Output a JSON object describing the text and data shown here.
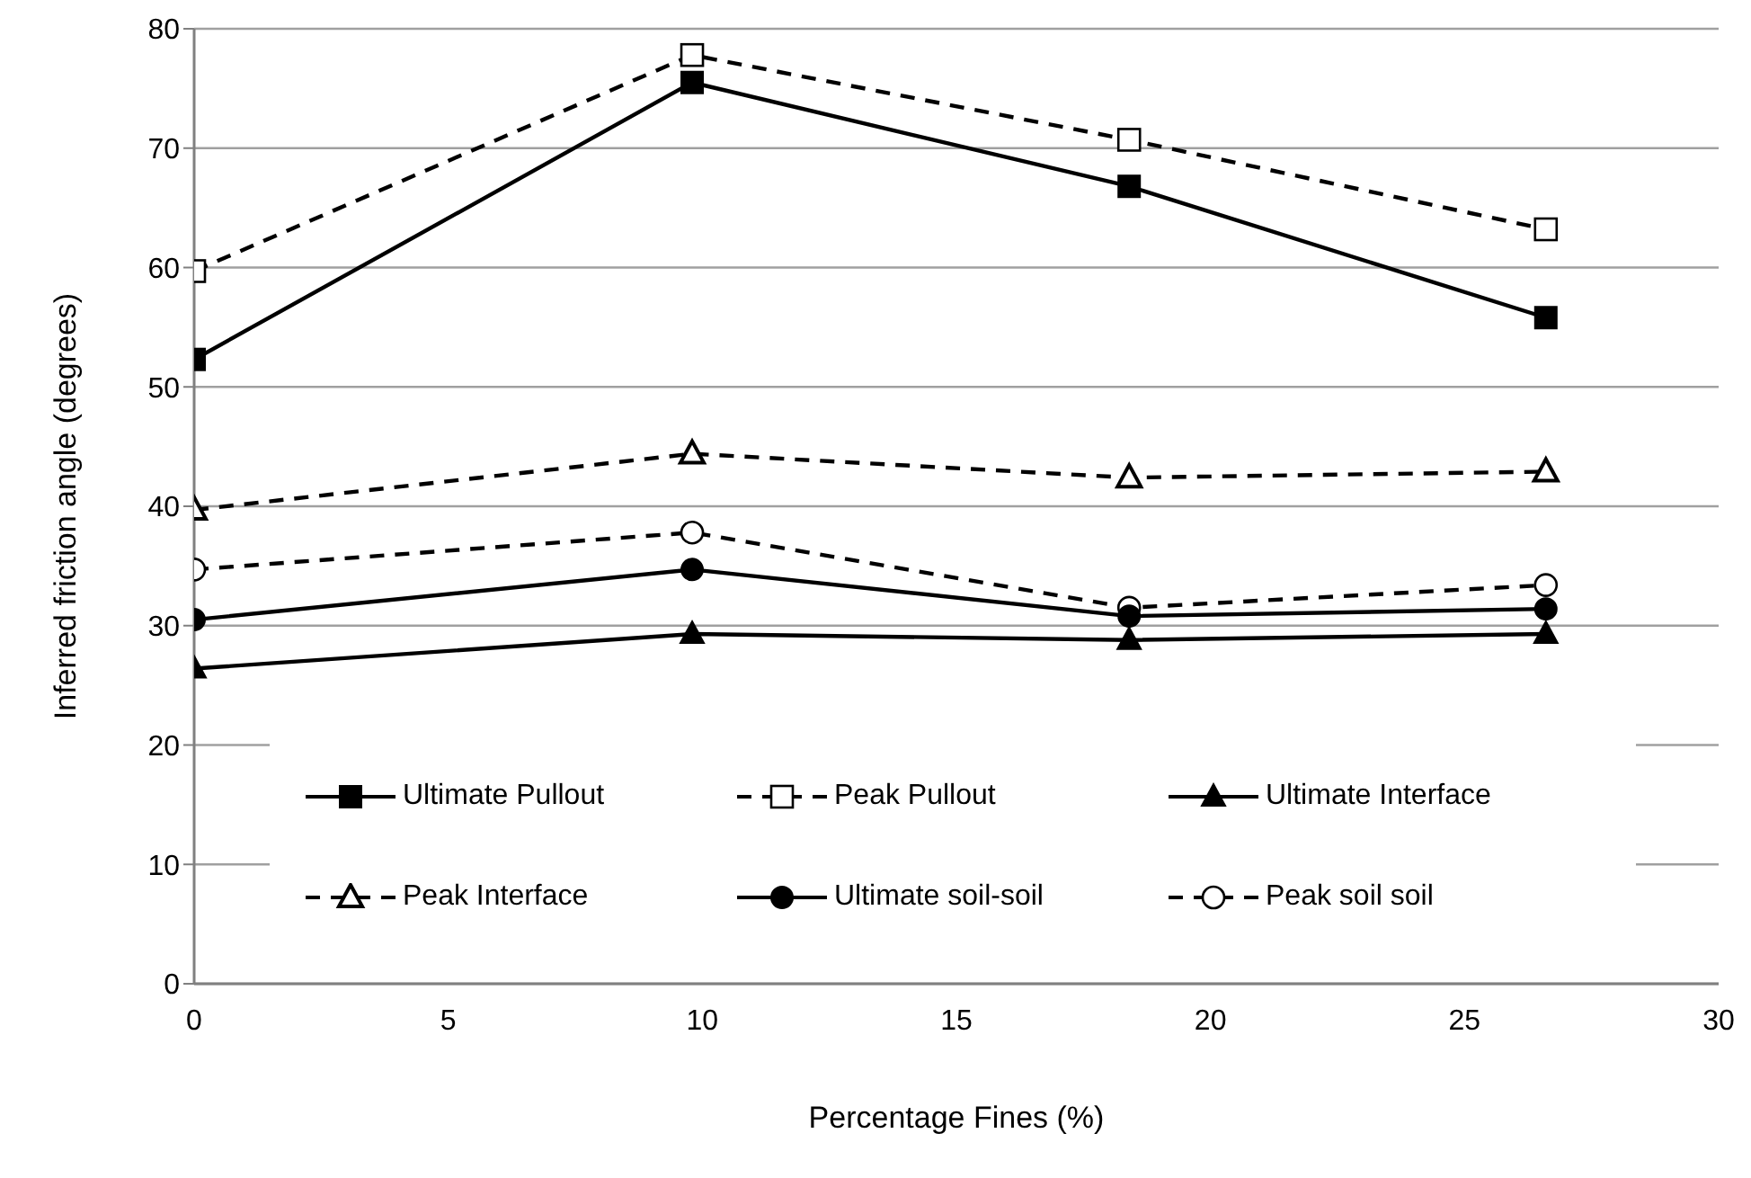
{
  "chart_data": {
    "type": "line",
    "xlabel": "Percentage Fines (%)",
    "ylabel": "Inferred friction angle (degrees)",
    "x": [
      0,
      9.8,
      18.4,
      26.6
    ],
    "xlim": [
      0,
      30
    ],
    "xticks": [
      0,
      5,
      10,
      15,
      20,
      25,
      30
    ],
    "ylim": [
      0,
      80
    ],
    "yticks": [
      0,
      10,
      20,
      30,
      40,
      50,
      60,
      70,
      80
    ],
    "grid": "y",
    "legend": "bottom",
    "series": [
      {
        "name": "Ultimate Pullout",
        "color": "#000000",
        "marker": "square",
        "line_style": "solid",
        "values": [
          52.3,
          75.5,
          66.8,
          55.8
        ]
      },
      {
        "name": "Peak Pullout",
        "color": "#000000",
        "marker": "square",
        "line_style": "dashed",
        "values": [
          59.7,
          77.8,
          70.7,
          63.2
        ]
      },
      {
        "name": "Ultimate Interface",
        "color": "#000000",
        "marker": "triangle",
        "line_style": "solid",
        "values": [
          26.4,
          29.3,
          28.8,
          29.3
        ]
      },
      {
        "name": "Peak Interface",
        "color": "#000000",
        "marker": "triangle",
        "line_style": "dashed",
        "values": [
          39.7,
          44.4,
          42.4,
          42.9
        ]
      },
      {
        "name": "Ultimate soil-soil",
        "color": "#000000",
        "marker": "circle",
        "line_style": "solid",
        "values": [
          30.5,
          34.7,
          30.8,
          31.4
        ]
      },
      {
        "name": "Peak soil soil",
        "color": "#000000",
        "marker": "circle",
        "line_style": "dashed",
        "values": [
          34.7,
          37.8,
          31.5,
          33.4
        ]
      }
    ]
  }
}
